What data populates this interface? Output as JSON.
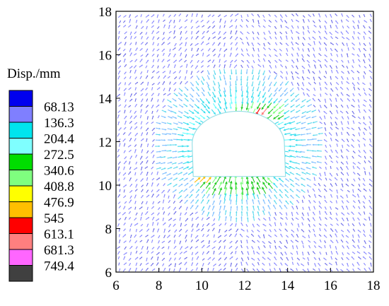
{
  "chart_data": {
    "type": "vector_field",
    "title": "",
    "xlabel": "",
    "ylabel": "",
    "xlim": [
      6,
      18
    ],
    "ylim": [
      6,
      18
    ],
    "x_ticks": [
      "6",
      "8",
      "10",
      "12",
      "14",
      "16",
      "18"
    ],
    "y_ticks": [
      "6",
      "8",
      "10",
      "12",
      "14",
      "16",
      "18"
    ],
    "grid": false,
    "legend": {
      "title": "Disp./mm",
      "placement": "left",
      "labels": [
        "68.13",
        "136.3",
        "204.4",
        "272.5",
        "340.6",
        "408.8",
        "476.9",
        "545",
        "613.1",
        "681.3",
        "749.4"
      ],
      "colors": [
        "#0000ee",
        "#7f7fff",
        "#00e5ee",
        "#7fffff",
        "#00dd00",
        "#7fff7f",
        "#ffff00",
        "#ffbf00",
        "#ff0000",
        "#ff7f7f",
        "#ff66ff",
        "#404040"
      ]
    },
    "opening": {
      "description_hidden": true,
      "center_x": 11.7,
      "floor_y": 10.4,
      "crown_y": 13.4,
      "left_x": 9.6,
      "right_x": 13.9
    }
  }
}
